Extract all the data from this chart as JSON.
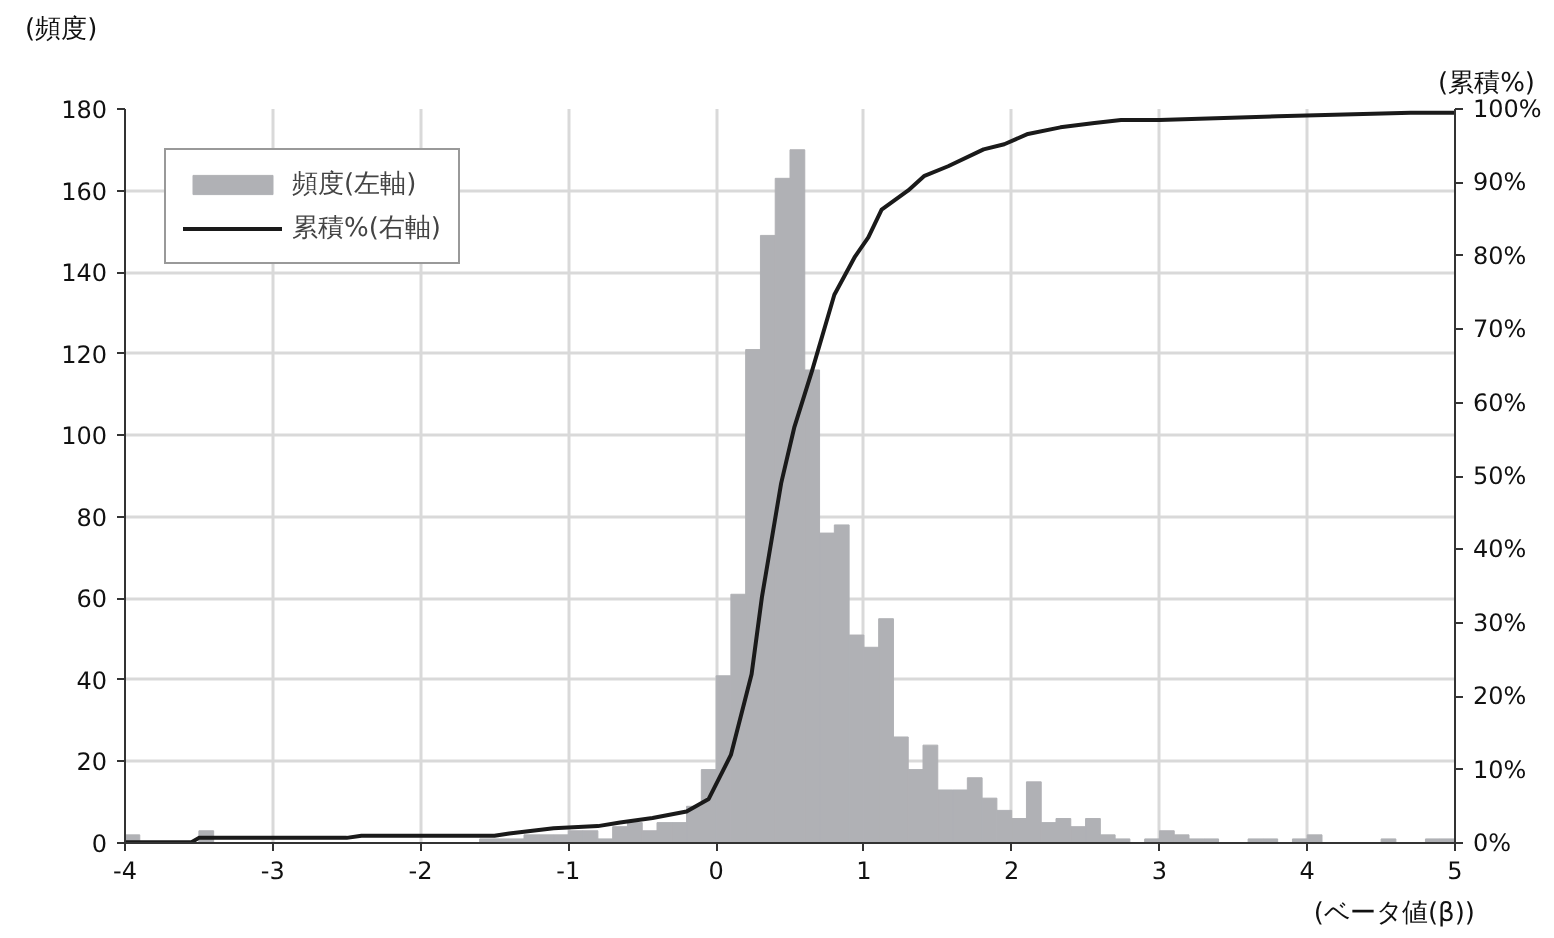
{
  "chart_data": {
    "type": "histogram",
    "ylabel": "(頻度)",
    "y2label": "(累積%)",
    "xlabel": "(ベータ値(β))",
    "bins": [
      -4,
      -3.9,
      -3.8,
      -3.7,
      -3.6,
      -3.5,
      -3.4,
      -3.3,
      -3.2,
      -3.1,
      -3,
      -2.9,
      -2.8,
      -2.7,
      -2.6,
      -2.5,
      -2.4,
      -2.3,
      -2.2,
      -2.1,
      -2,
      -1.9,
      -1.8,
      -1.7,
      -1.6,
      -1.5,
      -1.4,
      -1.3,
      -1.2,
      -1.1,
      -1,
      -0.9,
      -0.8,
      -0.7,
      -0.6,
      -0.5,
      -0.4,
      -0.3,
      -0.2,
      -0.1,
      0,
      0.1,
      0.2,
      0.3,
      0.4,
      0.5,
      0.6,
      0.7,
      0.8,
      0.9,
      1,
      1.1,
      1.2,
      1.3,
      1.4,
      1.5,
      1.6,
      1.7,
      1.8,
      1.9,
      2,
      2.1,
      2.2,
      2.3,
      2.4,
      2.5,
      2.6,
      2.7,
      2.8,
      2.9,
      3,
      3.1,
      3.2,
      3.3,
      3.4,
      3.5,
      3.6,
      3.7,
      3.8,
      3.9,
      4,
      4.1,
      4.2,
      4.3,
      4.4,
      4.5,
      4.6,
      4.7,
      4.8,
      4.9,
      5
    ],
    "series": [
      {
        "name": "頻度(左軸)",
        "color": "#b0b1b5",
        "values": [
          2,
          0,
          0,
          0,
          0,
          3,
          0,
          0,
          0,
          0,
          0,
          0,
          0,
          0,
          null,
          0,
          0,
          0,
          0,
          0,
          0,
          0,
          0,
          0,
          1,
          1,
          1,
          2,
          2,
          2,
          3,
          3,
          1,
          4,
          5,
          3,
          5,
          5,
          9,
          18,
          41,
          61,
          121,
          149,
          163,
          170,
          116,
          76,
          78,
          51,
          48,
          55,
          26,
          18,
          24,
          13,
          13,
          16,
          11,
          8,
          6,
          15,
          5,
          6,
          4,
          6,
          2,
          1,
          0,
          1,
          3,
          2,
          1,
          1,
          0,
          0,
          1,
          1,
          0,
          1,
          2,
          0,
          0,
          0,
          0,
          1,
          0,
          0,
          1,
          1
        ]
      },
      {
        "name": "累積%(右軸)",
        "type": "line",
        "axis": "y2",
        "color": "#1a1a1a",
        "x": [
          -4,
          -3.55,
          -3.5,
          -2.5,
          -2.4,
          -1.5,
          -1.4,
          -1.1,
          -0.8,
          -0.65,
          -0.43,
          -0.2,
          -0.05,
          0.1,
          0.24,
          0.31,
          0.44,
          0.53,
          0.65,
          0.8,
          0.94,
          1.03,
          1.12,
          1.3,
          1.41,
          1.57,
          1.81,
          1.95,
          2.11,
          2.33,
          2.56,
          2.74,
          3,
          3.8,
          4.7,
          5
        ],
        "values": [
          0.1,
          0.1,
          0.7,
          0.7,
          1,
          1,
          1.3,
          2,
          2.3,
          2.8,
          3.4,
          4.3,
          6,
          12,
          23,
          33.5,
          49,
          56.7,
          64.4,
          74.7,
          79.9,
          82.5,
          86.3,
          88.9,
          90.9,
          92.2,
          94.5,
          95.2,
          96.6,
          97.5,
          98.1,
          98.5,
          98.5,
          99,
          99.5,
          99.5
        ]
      }
    ],
    "xlim": [
      -4,
      5
    ],
    "xticks": [
      -4,
      -3,
      -2,
      -1,
      0,
      1,
      2,
      3,
      4,
      5
    ],
    "ylim": [
      0,
      180
    ],
    "yticks": [
      0,
      20,
      40,
      60,
      80,
      100,
      120,
      140,
      160,
      180
    ],
    "y2lim": [
      0,
      100
    ],
    "y2ticks": [
      {
        "value": 0,
        "label": "0%"
      },
      {
        "value": 10,
        "label": "10%"
      },
      {
        "value": 20,
        "label": "20%"
      },
      {
        "value": 30,
        "label": "30%"
      },
      {
        "value": 40,
        "label": "40%"
      },
      {
        "value": 50,
        "label": "50%"
      },
      {
        "value": 60,
        "label": "60%"
      },
      {
        "value": 70,
        "label": "70%"
      },
      {
        "value": 80,
        "label": "80%"
      },
      {
        "value": 90,
        "label": "90%"
      },
      {
        "value": 100,
        "label": "100%"
      }
    ],
    "grid": true,
    "legend": "top left"
  }
}
